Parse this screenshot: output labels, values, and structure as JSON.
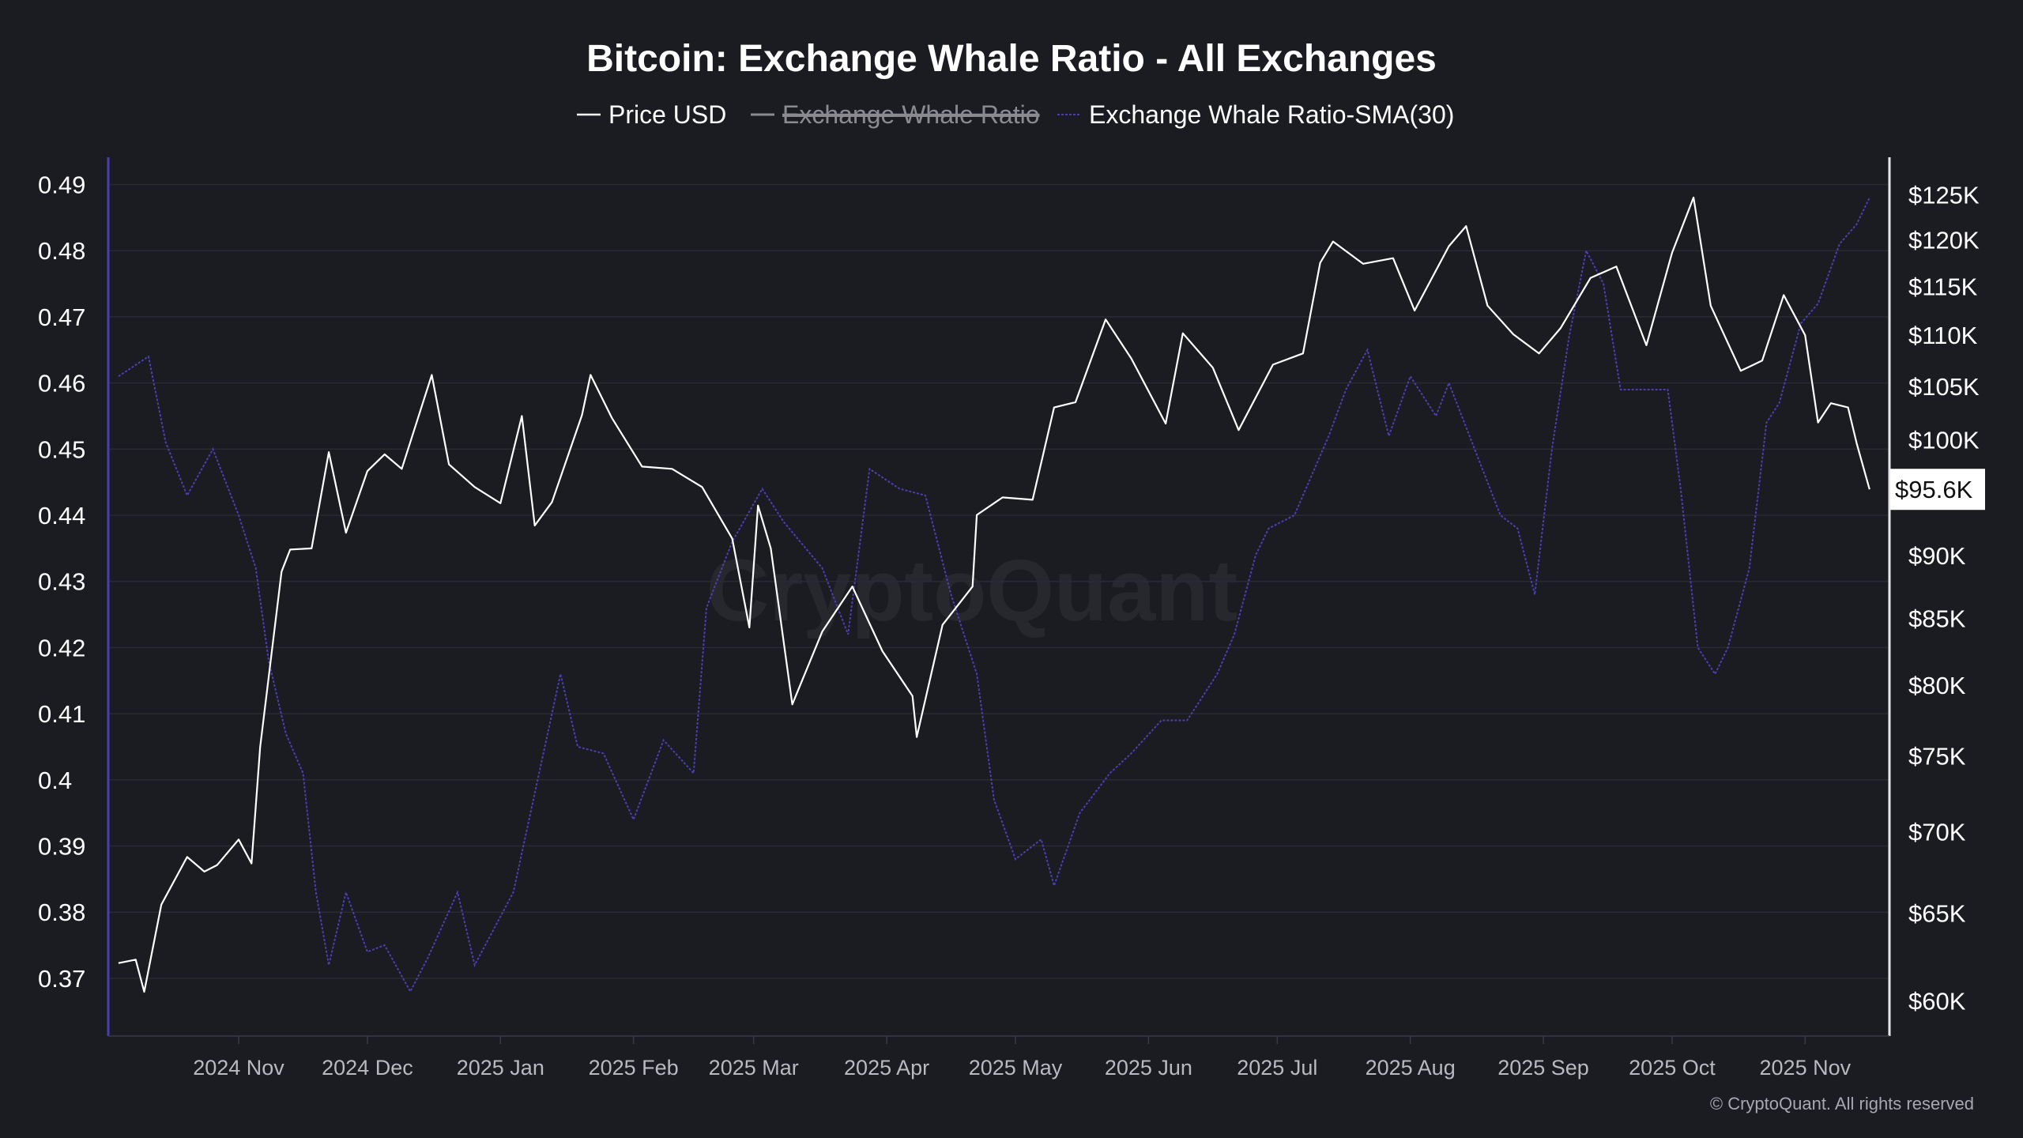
{
  "chart_data": {
    "type": "line",
    "title": "Bitcoin: Exchange Whale Ratio - All Exchanges",
    "legend": {
      "placement": "top-center",
      "items": [
        {
          "label": "Price USD",
          "color": "#ffffff",
          "visible": true
        },
        {
          "label": "Exchange Whale Ratio",
          "color": "#8a8a90",
          "visible": false
        },
        {
          "label": "Exchange Whale Ratio-SMA(30)",
          "color": "#4a3fb0",
          "visible": true
        }
      ]
    },
    "grid": true,
    "left_axis": {
      "range": [
        0.365,
        0.495
      ],
      "ticks": [
        "0.49",
        "0.48",
        "0.47",
        "0.46",
        "0.45",
        "0.44",
        "0.43",
        "0.42",
        "0.41",
        "0.4",
        "0.39",
        "0.38",
        "0.37"
      ],
      "tick_values": [
        0.49,
        0.48,
        0.47,
        0.46,
        0.45,
        0.44,
        0.43,
        0.42,
        0.41,
        0.4,
        0.39,
        0.38,
        0.37
      ],
      "color": "#4a3fb0"
    },
    "right_axis": {
      "scale": "log",
      "range": [
        58000,
        128000
      ],
      "ticks": [
        "$125K",
        "$120K",
        "$115K",
        "$110K",
        "$105K",
        "$100K",
        "$90K",
        "$85K",
        "$80K",
        "$75K",
        "$70K",
        "$65K",
        "$60K"
      ],
      "tick_values": [
        125000,
        120000,
        115000,
        110000,
        105000,
        100000,
        90000,
        85000,
        80000,
        75000,
        70000,
        65000,
        60000
      ],
      "current_label": "$95.6K",
      "current_value": 95600
    },
    "x_axis": {
      "ticks": [
        "2024 Nov",
        "2024 Dec",
        "2025 Jan",
        "2025 Feb",
        "2025 Mar",
        "2025 Apr",
        "2025 May",
        "2025 Jun",
        "2025 Jul",
        "2025 Aug",
        "2025 Sep",
        "2025 Oct",
        "2025 Nov"
      ],
      "tick_dates": [
        "2024-11-01",
        "2024-12-01",
        "2025-01-01",
        "2025-02-01",
        "2025-03-01",
        "2025-04-01",
        "2025-05-01",
        "2025-06-01",
        "2025-07-01",
        "2025-08-01",
        "2025-09-01",
        "2025-10-01",
        "2025-11-01"
      ]
    },
    "series": [
      {
        "name": "Price USD",
        "axis": "right",
        "color": "#ffffff",
        "points": [
          [
            "2024-10-04",
            62100
          ],
          [
            "2024-10-08",
            62300
          ],
          [
            "2024-10-10",
            60500
          ],
          [
            "2024-10-14",
            65500
          ],
          [
            "2024-10-20",
            68400
          ],
          [
            "2024-10-24",
            67500
          ],
          [
            "2024-10-27",
            67900
          ],
          [
            "2024-11-01",
            69500
          ],
          [
            "2024-11-04",
            68000
          ],
          [
            "2024-11-06",
            75600
          ],
          [
            "2024-11-11",
            88700
          ],
          [
            "2024-11-13",
            90500
          ],
          [
            "2024-11-18",
            90600
          ],
          [
            "2024-11-22",
            98900
          ],
          [
            "2024-11-26",
            91900
          ],
          [
            "2024-12-01",
            97200
          ],
          [
            "2024-12-05",
            98700
          ],
          [
            "2024-12-09",
            97400
          ],
          [
            "2024-12-16",
            106100
          ],
          [
            "2024-12-20",
            97800
          ],
          [
            "2024-12-26",
            95800
          ],
          [
            "2025-01-01",
            94400
          ],
          [
            "2025-01-06",
            102200
          ],
          [
            "2025-01-09",
            92500
          ],
          [
            "2025-01-13",
            94500
          ],
          [
            "2025-01-20",
            102300
          ],
          [
            "2025-01-22",
            106100
          ],
          [
            "2025-01-27",
            102000
          ],
          [
            "2025-02-03",
            97600
          ],
          [
            "2025-02-10",
            97400
          ],
          [
            "2025-02-17",
            95800
          ],
          [
            "2025-02-24",
            91400
          ],
          [
            "2025-02-28",
            84300
          ],
          [
            "2025-03-02",
            94200
          ],
          [
            "2025-03-05",
            90600
          ],
          [
            "2025-03-10",
            78600
          ],
          [
            "2025-03-17",
            84000
          ],
          [
            "2025-03-24",
            87500
          ],
          [
            "2025-03-31",
            82500
          ],
          [
            "2025-04-07",
            79200
          ],
          [
            "2025-04-08",
            76300
          ],
          [
            "2025-04-14",
            84500
          ],
          [
            "2025-04-21",
            87500
          ],
          [
            "2025-04-22",
            93400
          ],
          [
            "2025-04-28",
            94900
          ],
          [
            "2025-05-05",
            94700
          ],
          [
            "2025-05-10",
            103000
          ],
          [
            "2025-05-15",
            103500
          ],
          [
            "2025-05-22",
            111600
          ],
          [
            "2025-05-28",
            107700
          ],
          [
            "2025-06-05",
            101500
          ],
          [
            "2025-06-09",
            110200
          ],
          [
            "2025-06-16",
            106800
          ],
          [
            "2025-06-22",
            100900
          ],
          [
            "2025-06-30",
            107100
          ],
          [
            "2025-07-07",
            108200
          ],
          [
            "2025-07-11",
            117500
          ],
          [
            "2025-07-14",
            119800
          ],
          [
            "2025-07-21",
            117400
          ],
          [
            "2025-07-28",
            118000
          ],
          [
            "2025-08-02",
            112500
          ],
          [
            "2025-08-10",
            119300
          ],
          [
            "2025-08-14",
            121500
          ],
          [
            "2025-08-19",
            113000
          ],
          [
            "2025-08-25",
            110100
          ],
          [
            "2025-08-31",
            108200
          ],
          [
            "2025-09-05",
            110700
          ],
          [
            "2025-09-12",
            115900
          ],
          [
            "2025-09-18",
            117100
          ],
          [
            "2025-09-25",
            109000
          ],
          [
            "2025-10-01",
            118600
          ],
          [
            "2025-10-06",
            124700
          ],
          [
            "2025-10-10",
            113000
          ],
          [
            "2025-10-17",
            106500
          ],
          [
            "2025-10-22",
            107500
          ],
          [
            "2025-10-27",
            114100
          ],
          [
            "2025-11-01",
            110000
          ],
          [
            "2025-11-04",
            101600
          ],
          [
            "2025-11-07",
            103400
          ],
          [
            "2025-11-11",
            103000
          ],
          [
            "2025-11-13",
            99700
          ],
          [
            "2025-11-16",
            95600
          ]
        ]
      },
      {
        "name": "Exchange Whale Ratio-SMA(30)",
        "axis": "left",
        "color": "#4a3fb0",
        "points": [
          [
            "2024-10-04",
            0.461
          ],
          [
            "2024-10-11",
            0.464
          ],
          [
            "2024-10-15",
            0.451
          ],
          [
            "2024-10-20",
            0.443
          ],
          [
            "2024-10-26",
            0.45
          ],
          [
            "2024-11-01",
            0.44
          ],
          [
            "2024-11-05",
            0.432
          ],
          [
            "2024-11-08",
            0.418
          ],
          [
            "2024-11-12",
            0.407
          ],
          [
            "2024-11-16",
            0.401
          ],
          [
            "2024-11-19",
            0.383
          ],
          [
            "2024-11-22",
            0.372
          ],
          [
            "2024-11-26",
            0.383
          ],
          [
            "2024-12-01",
            0.374
          ],
          [
            "2024-12-05",
            0.375
          ],
          [
            "2024-12-11",
            0.368
          ],
          [
            "2024-12-15",
            0.373
          ],
          [
            "2024-12-22",
            0.383
          ],
          [
            "2024-12-26",
            0.372
          ],
          [
            "2025-01-04",
            0.383
          ],
          [
            "2025-01-10",
            0.401
          ],
          [
            "2025-01-15",
            0.416
          ],
          [
            "2025-01-19",
            0.405
          ],
          [
            "2025-01-25",
            0.404
          ],
          [
            "2025-02-01",
            0.394
          ],
          [
            "2025-02-08",
            0.406
          ],
          [
            "2025-02-15",
            0.401
          ],
          [
            "2025-02-18",
            0.426
          ],
          [
            "2025-02-24",
            0.436
          ],
          [
            "2025-03-03",
            0.444
          ],
          [
            "2025-03-08",
            0.439
          ],
          [
            "2025-03-17",
            0.432
          ],
          [
            "2025-03-23",
            0.422
          ],
          [
            "2025-03-28",
            0.447
          ],
          [
            "2025-04-04",
            0.444
          ],
          [
            "2025-04-10",
            0.443
          ],
          [
            "2025-04-16",
            0.428
          ],
          [
            "2025-04-22",
            0.416
          ],
          [
            "2025-04-26",
            0.397
          ],
          [
            "2025-05-01",
            0.388
          ],
          [
            "2025-05-07",
            0.391
          ],
          [
            "2025-05-10",
            0.384
          ],
          [
            "2025-05-16",
            0.395
          ],
          [
            "2025-05-23",
            0.401
          ],
          [
            "2025-05-28",
            0.404
          ],
          [
            "2025-06-04",
            0.409
          ],
          [
            "2025-06-10",
            0.409
          ],
          [
            "2025-06-17",
            0.416
          ],
          [
            "2025-06-21",
            0.422
          ],
          [
            "2025-06-26",
            0.434
          ],
          [
            "2025-06-29",
            0.438
          ],
          [
            "2025-07-05",
            0.44
          ],
          [
            "2025-07-13",
            0.452
          ],
          [
            "2025-07-17",
            0.459
          ],
          [
            "2025-07-22",
            0.465
          ],
          [
            "2025-07-27",
            0.452
          ],
          [
            "2025-08-01",
            0.461
          ],
          [
            "2025-08-07",
            0.455
          ],
          [
            "2025-08-10",
            0.46
          ],
          [
            "2025-08-16",
            0.45
          ],
          [
            "2025-08-22",
            0.44
          ],
          [
            "2025-08-26",
            0.438
          ],
          [
            "2025-08-30",
            0.428
          ],
          [
            "2025-09-03",
            0.45
          ],
          [
            "2025-09-07",
            0.467
          ],
          [
            "2025-09-11",
            0.48
          ],
          [
            "2025-09-15",
            0.475
          ],
          [
            "2025-09-19",
            0.459
          ],
          [
            "2025-09-24",
            0.459
          ],
          [
            "2025-09-30",
            0.459
          ],
          [
            "2025-10-03",
            0.444
          ],
          [
            "2025-10-07",
            0.42
          ],
          [
            "2025-10-11",
            0.416
          ],
          [
            "2025-10-14",
            0.42
          ],
          [
            "2025-10-19",
            0.432
          ],
          [
            "2025-10-23",
            0.454
          ],
          [
            "2025-10-26",
            0.457
          ],
          [
            "2025-10-31",
            0.469
          ],
          [
            "2025-11-04",
            0.472
          ],
          [
            "2025-11-09",
            0.481
          ],
          [
            "2025-11-13",
            0.484
          ],
          [
            "2025-11-16",
            0.488
          ]
        ]
      }
    ]
  },
  "watermark": "CryptoQuant",
  "copyright": "© CryptoQuant. All rights reserved"
}
